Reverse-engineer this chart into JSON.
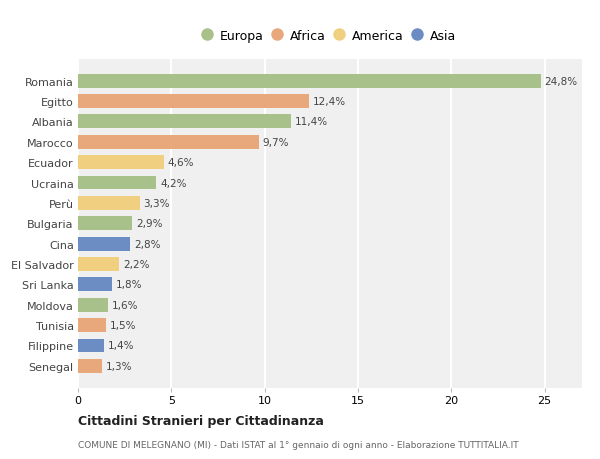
{
  "countries": [
    "Romania",
    "Egitto",
    "Albania",
    "Marocco",
    "Ecuador",
    "Ucraina",
    "Perù",
    "Bulgaria",
    "Cina",
    "El Salvador",
    "Sri Lanka",
    "Moldova",
    "Tunisia",
    "Filippine",
    "Senegal"
  ],
  "values": [
    24.8,
    12.4,
    11.4,
    9.7,
    4.6,
    4.2,
    3.3,
    2.9,
    2.8,
    2.2,
    1.8,
    1.6,
    1.5,
    1.4,
    1.3
  ],
  "labels": [
    "24,8%",
    "12,4%",
    "11,4%",
    "9,7%",
    "4,6%",
    "4,2%",
    "3,3%",
    "2,9%",
    "2,8%",
    "2,2%",
    "1,8%",
    "1,6%",
    "1,5%",
    "1,4%",
    "1,3%"
  ],
  "continents": [
    "Europa",
    "Africa",
    "Europa",
    "Africa",
    "America",
    "Europa",
    "America",
    "Europa",
    "Asia",
    "America",
    "Asia",
    "Europa",
    "Africa",
    "Asia",
    "Africa"
  ],
  "colors": {
    "Europa": "#a8c08a",
    "Africa": "#e8a87c",
    "America": "#f0d080",
    "Asia": "#6b8dc4"
  },
  "legend_labels": [
    "Europa",
    "Africa",
    "America",
    "Asia"
  ],
  "legend_colors": [
    "#a8c08a",
    "#e8a87c",
    "#f0d080",
    "#6b8dc4"
  ],
  "title": "Cittadini Stranieri per Cittadinanza",
  "subtitle": "COMUNE DI MELEGNANO (MI) - Dati ISTAT al 1° gennaio di ogni anno - Elaborazione TUTTITALIA.IT",
  "xlim": [
    0,
    27
  ],
  "xticks": [
    0,
    5,
    10,
    15,
    20,
    25
  ],
  "background_color": "#ffffff",
  "plot_bg_color": "#f0f0f0",
  "grid_color": "#ffffff"
}
